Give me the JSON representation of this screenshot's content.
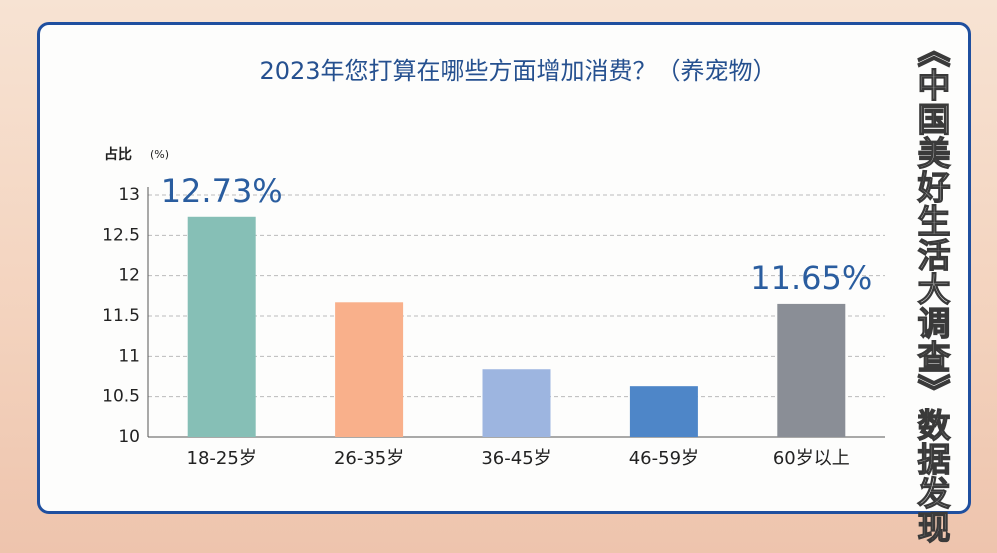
{
  "chart_data": {
    "type": "bar",
    "title": "2023年您打算在哪些方面增加消费？（养宠物）",
    "y_label": "占比",
    "y_unit": "(%)",
    "side_text": "《中国美好生活大调查》数据发现",
    "categories": [
      "18-25岁",
      "26-35岁",
      "36-45岁",
      "46-59岁",
      "60岁以上"
    ],
    "values": [
      12.73,
      11.67,
      10.84,
      10.63,
      11.65
    ],
    "value_labels": [
      "12.73%",
      null,
      null,
      null,
      "11.65%"
    ],
    "colors": [
      "#86bfb6",
      "#f9b08b",
      "#9db5e0",
      "#4e86c8",
      "#8a8e96"
    ],
    "ylim": [
      10,
      13
    ],
    "yticks": [
      10,
      10.5,
      11,
      11.5,
      12,
      12.5,
      13
    ],
    "grid": true
  }
}
